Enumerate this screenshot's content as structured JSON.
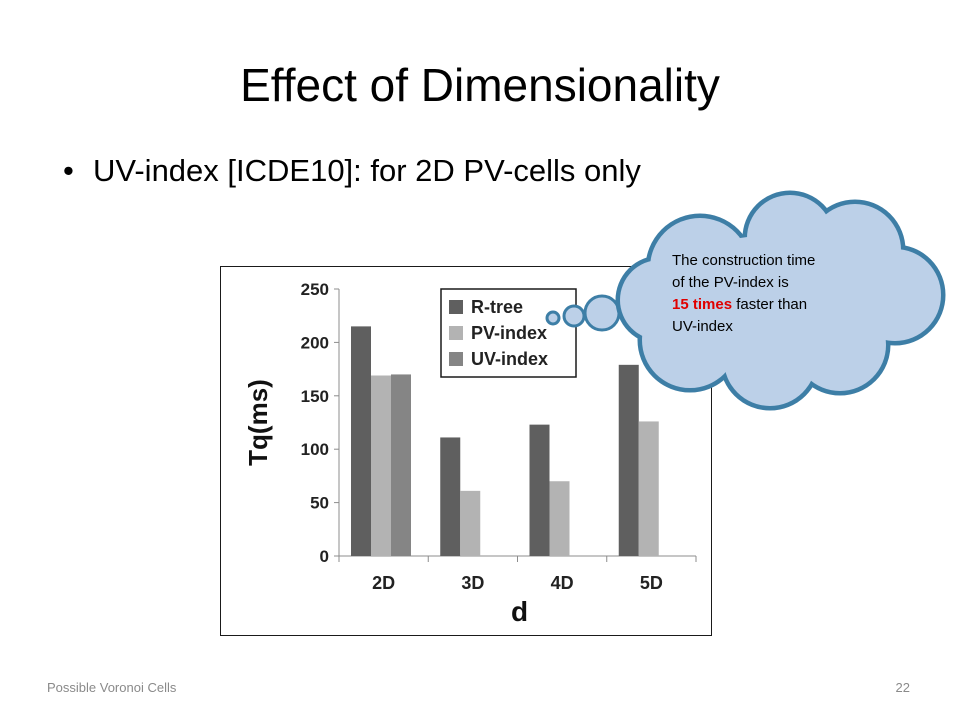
{
  "slide": {
    "title": "Effect of Dimensionality",
    "bullet": "UV-index [ICDE10]: for 2D PV-cells only",
    "footer_left": "Possible Voronoi Cells",
    "page_number": "22"
  },
  "callout": {
    "line1": "The construction time",
    "line2": "of the PV-index is",
    "highlight": "15 times",
    "line3_rest": " faster than",
    "line4": "UV-index",
    "highlight_color": "#e00000",
    "fill_color": "#bcd0e8",
    "border_color": "#3d7ea6"
  },
  "chart_data": {
    "type": "bar",
    "title": "",
    "xlabel": "d",
    "ylabel": "Tq(ms)",
    "ylim": [
      0,
      250
    ],
    "yticks": [
      0,
      50,
      100,
      150,
      200,
      250
    ],
    "categories": [
      "2D",
      "3D",
      "4D",
      "5D"
    ],
    "series": [
      {
        "name": "R-tree",
        "values": [
          215,
          111,
          123,
          179
        ],
        "color": "#5f5f5f"
      },
      {
        "name": "PV-index",
        "values": [
          169,
          61,
          70,
          126
        ],
        "color": "#b3b3b3"
      },
      {
        "name": "UV-index",
        "values": [
          170,
          null,
          null,
          null
        ],
        "color": "#858585"
      }
    ],
    "legend_position": "top-right",
    "grid": false
  }
}
